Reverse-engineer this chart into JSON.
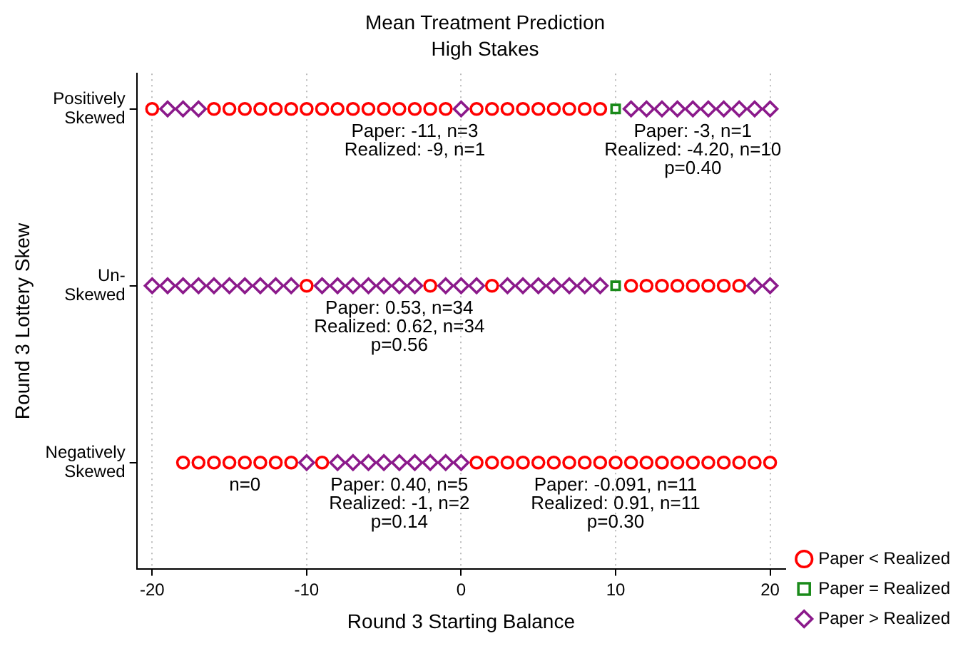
{
  "chart_data": {
    "type": "scatter",
    "title": "Mean Treatment Prediction",
    "subtitle": "High Stakes",
    "xlabel": "Round 3 Starting Balance",
    "ylabel": "Round 3 Lottery Skew",
    "orientation": "horizontal",
    "categories": [
      "Positively\nSkewed",
      "Un-\nSkewed",
      "Negatively\nSkewed"
    ],
    "xlim": [
      -21,
      21
    ],
    "xticks": [
      -20,
      -10,
      0,
      10,
      20
    ],
    "grid": "x",
    "legend": "bottom right",
    "series": [
      {
        "name": "Paper < Realized",
        "color": "#ff0000",
        "marker": "circle",
        "values": [
          -20,
          -16,
          -15,
          -14,
          -13,
          -12,
          -11,
          -10,
          -9,
          -8,
          -7,
          -6,
          -5,
          -4,
          -3,
          -2,
          -1,
          1,
          2,
          3,
          4,
          5,
          6,
          7,
          8,
          9,
          -10,
          -2,
          2,
          11,
          12,
          13,
          14,
          15,
          16,
          17,
          18,
          -18,
          -17,
          -16,
          -15,
          -14,
          -13,
          -12,
          -11,
          -9,
          1,
          2,
          3,
          4,
          5,
          6,
          7,
          8,
          9,
          10,
          11,
          12,
          13,
          14,
          15,
          16,
          17,
          18,
          19,
          20
        ],
        "x": [
          "Positively\nSkewed",
          "Positively\nSkewed",
          "Positively\nSkewed",
          "Positively\nSkewed",
          "Positively\nSkewed",
          "Positively\nSkewed",
          "Positively\nSkewed",
          "Positively\nSkewed",
          "Positively\nSkewed",
          "Positively\nSkewed",
          "Positively\nSkewed",
          "Positively\nSkewed",
          "Positively\nSkewed",
          "Positively\nSkewed",
          "Positively\nSkewed",
          "Positively\nSkewed",
          "Positively\nSkewed",
          "Positively\nSkewed",
          "Positively\nSkewed",
          "Positively\nSkewed",
          "Positively\nSkewed",
          "Positively\nSkewed",
          "Positively\nSkewed",
          "Positively\nSkewed",
          "Positively\nSkewed",
          "Positively\nSkewed",
          "Un-\nSkewed",
          "Un-\nSkewed",
          "Un-\nSkewed",
          "Un-\nSkewed",
          "Un-\nSkewed",
          "Un-\nSkewed",
          "Un-\nSkewed",
          "Un-\nSkewed",
          "Un-\nSkewed",
          "Un-\nSkewed",
          "Un-\nSkewed",
          "Negatively\nSkewed",
          "Negatively\nSkewed",
          "Negatively\nSkewed",
          "Negatively\nSkewed",
          "Negatively\nSkewed",
          "Negatively\nSkewed",
          "Negatively\nSkewed",
          "Negatively\nSkewed",
          "Negatively\nSkewed",
          "Negatively\nSkewed",
          "Negatively\nSkewed",
          "Negatively\nSkewed",
          "Negatively\nSkewed",
          "Negatively\nSkewed",
          "Negatively\nSkewed",
          "Negatively\nSkewed",
          "Negatively\nSkewed",
          "Negatively\nSkewed",
          "Negatively\nSkewed",
          "Negatively\nSkewed",
          "Negatively\nSkewed",
          "Negatively\nSkewed",
          "Negatively\nSkewed",
          "Negatively\nSkewed",
          "Negatively\nSkewed",
          "Negatively\nSkewed",
          "Negatively\nSkewed",
          "Negatively\nSkewed",
          "Negatively\nSkewed"
        ]
      },
      {
        "name": "Paper = Realized",
        "color": "#1a8a1a",
        "marker": "square",
        "values": [
          10,
          10
        ],
        "x": [
          "Positively\nSkewed",
          "Un-\nSkewed"
        ]
      },
      {
        "name": "Paper > Realized",
        "color": "#8b1a8b",
        "marker": "diamond",
        "values": [
          -19,
          -18,
          -17,
          0,
          11,
          12,
          13,
          14,
          15,
          16,
          17,
          18,
          19,
          20,
          -20,
          -19,
          -18,
          -17,
          -16,
          -15,
          -14,
          -13,
          -12,
          -11,
          -9,
          -8,
          -7,
          -6,
          -5,
          -4,
          -3,
          -1,
          0,
          1,
          3,
          4,
          5,
          6,
          7,
          8,
          9,
          19,
          20,
          -10,
          -8,
          -7,
          -6,
          -5,
          -4,
          -3,
          -2,
          -1,
          0
        ],
        "x": [
          "Positively\nSkewed",
          "Positively\nSkewed",
          "Positively\nSkewed",
          "Positively\nSkewed",
          "Positively\nSkewed",
          "Positively\nSkewed",
          "Positively\nSkewed",
          "Positively\nSkewed",
          "Positively\nSkewed",
          "Positively\nSkewed",
          "Positively\nSkewed",
          "Positively\nSkewed",
          "Positively\nSkewed",
          "Positively\nSkewed",
          "Un-\nSkewed",
          "Un-\nSkewed",
          "Un-\nSkewed",
          "Un-\nSkewed",
          "Un-\nSkewed",
          "Un-\nSkewed",
          "Un-\nSkewed",
          "Un-\nSkewed",
          "Un-\nSkewed",
          "Un-\nSkewed",
          "Un-\nSkewed",
          "Un-\nSkewed",
          "Un-\nSkewed",
          "Un-\nSkewed",
          "Un-\nSkewed",
          "Un-\nSkewed",
          "Un-\nSkewed",
          "Un-\nSkewed",
          "Un-\nSkewed",
          "Un-\nSkewed",
          "Un-\nSkewed",
          "Un-\nSkewed",
          "Un-\nSkewed",
          "Un-\nSkewed",
          "Un-\nSkewed",
          "Un-\nSkewed",
          "Un-\nSkewed",
          "Un-\nSkewed",
          "Un-\nSkewed",
          "Negatively\nSkewed",
          "Negatively\nSkewed",
          "Negatively\nSkewed",
          "Negatively\nSkewed",
          "Negatively\nSkewed",
          "Negatively\nSkewed",
          "Negatively\nSkewed",
          "Negatively\nSkewed",
          "Negatively\nSkewed",
          "Negatively\nSkewed"
        ]
      }
    ],
    "annotations": [
      {
        "text": "Paper: -11, n=3\nRealized: -9, n=1",
        "x": -3,
        "y": "Positively\nSkewed"
      },
      {
        "text": "Paper: -3, n=1\nRealized: -4.20, n=10\np=0.40",
        "x": 15,
        "y": "Positively\nSkewed"
      },
      {
        "text": "Paper: 0.53, n=34\nRealized: 0.62, n=34\np=0.56",
        "x": -4,
        "y": "Un-\nSkewed"
      },
      {
        "text": "n=0",
        "x": -14,
        "y": "Negatively\nSkewed"
      },
      {
        "text": "Paper: 0.40, n=5\nRealized: -1, n=2\np=0.14",
        "x": -4,
        "y": "Negatively\nSkewed"
      },
      {
        "text": "Paper: -0.091, n=11\nRealized: 0.91, n=11\np=0.30",
        "x": 10,
        "y": "Negatively\nSkewed"
      }
    ]
  }
}
